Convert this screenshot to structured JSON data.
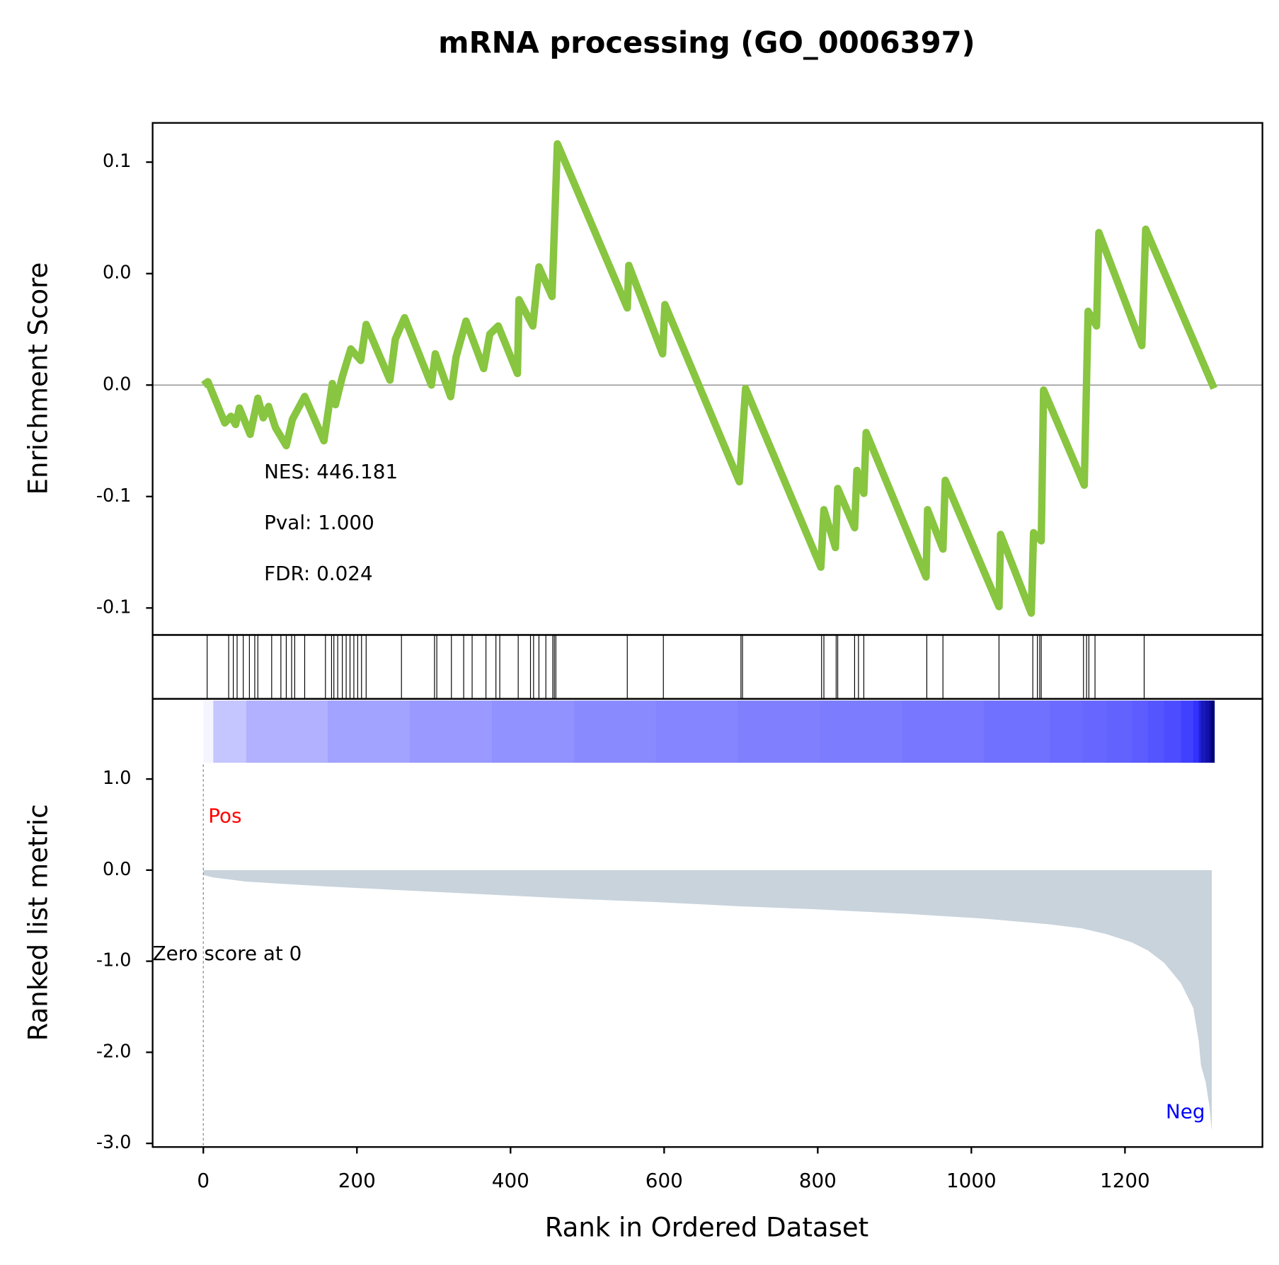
{
  "chart_data": {
    "type": "gsea",
    "title": "mRNA processing (GO_0006397)",
    "xlabel": "Rank in Ordered Dataset",
    "xlim": [
      -66,
      1379
    ],
    "xticks": [
      0,
      200,
      400,
      600,
      800,
      1000,
      1200
    ],
    "enrichment": {
      "ylabel": "Enrichment Score",
      "color": "#88c540",
      "ylim": [
        -0.1121,
        0.1176
      ],
      "yticks": [
        {
          "value": 0.1,
          "label": "0.1"
        },
        {
          "value": 0.05,
          "label": "0.0"
        },
        {
          "value": 0,
          "label": "0.0"
        },
        {
          "value": -0.05,
          "label": "-0.1"
        },
        {
          "value": -0.1,
          "label": "-0.1"
        }
      ],
      "x": [
        0,
        6,
        28,
        36,
        42,
        47,
        61,
        71,
        78,
        85,
        94,
        108,
        116,
        132,
        157,
        168,
        172,
        181,
        192,
        205,
        212,
        243,
        250,
        262,
        297,
        302,
        322,
        329,
        342,
        365,
        373,
        384,
        409,
        411,
        429,
        437,
        454,
        461,
        552,
        554,
        598,
        601,
        698,
        706,
        804,
        808,
        823,
        826,
        848,
        851,
        860,
        863,
        941,
        943,
        963,
        966,
        1036,
        1038,
        1078,
        1081,
        1091,
        1094,
        1147,
        1152,
        1163,
        1166,
        1222,
        1227,
        1316
      ],
      "values": [
        0,
        0.0015,
        -0.017,
        -0.014,
        -0.0177,
        -0.0103,
        -0.0221,
        -0.0059,
        -0.0147,
        -0.0096,
        -0.0191,
        -0.0272,
        -0.0154,
        -0.0051,
        -0.025,
        0.0007,
        -0.0088,
        0.0037,
        0.0162,
        0.011,
        0.0272,
        0.0022,
        0.0206,
        0.0302,
        0,
        0.014,
        -0.0052,
        0.0125,
        0.0287,
        0.0074,
        0.0228,
        0.0265,
        0.0052,
        0.0383,
        0.0265,
        0.053,
        0.0397,
        0.1082,
        0.0346,
        0.0537,
        0.014,
        0.0361,
        -0.0434,
        -0.0015,
        -0.0817,
        -0.0559,
        -0.0729,
        -0.0464,
        -0.064,
        -0.0383,
        -0.0486,
        -0.0213,
        -0.0861,
        -0.0559,
        -0.0736,
        -0.0427,
        -0.0994,
        -0.067,
        -0.1023,
        -0.0662,
        -0.0699,
        -0.0022,
        -0.0449,
        0.0331,
        0.0265,
        0.0684,
        0.0177,
        0.0699,
        -0.0015
      ],
      "annotations": [
        "NES: 446.181",
        "Pval: 1.000",
        "FDR: 0.024"
      ]
    },
    "hits": [
      5,
      33,
      39,
      44,
      52,
      60,
      67,
      71,
      89,
      101,
      108,
      115,
      119,
      132,
      159,
      167,
      170,
      175,
      181,
      186,
      191,
      196,
      201,
      206,
      212,
      258,
      301,
      304,
      323,
      339,
      350,
      368,
      381,
      386,
      410,
      426,
      430,
      437,
      446,
      455,
      457,
      459,
      552,
      599,
      700,
      702,
      805,
      808,
      824,
      826,
      848,
      853,
      860,
      942,
      963,
      1036,
      1080,
      1086,
      1089,
      1091,
      1146,
      1150,
      1153,
      1161,
      1225
    ],
    "metric": {
      "ylabel": "Ranked list metric",
      "color": "#c8d3dc",
      "ylim": [
        -3.04,
        1.88
      ],
      "yticks": [
        {
          "value": 1,
          "label": "1.0"
        },
        {
          "value": 0,
          "label": "0.0"
        },
        {
          "value": -1,
          "label": "-1.0"
        },
        {
          "value": -2,
          "label": "-2.0"
        },
        {
          "value": -3,
          "label": "-3.0"
        }
      ],
      "x": [
        0,
        13,
        56,
        162,
        269,
        376,
        483,
        589,
        696,
        803,
        910,
        1016,
        1102,
        1144,
        1176,
        1209,
        1230,
        1251,
        1273,
        1289,
        1296,
        1299,
        1305,
        1310,
        1313
      ],
      "values": [
        -0.054,
        -0.081,
        -0.126,
        -0.18,
        -0.225,
        -0.27,
        -0.315,
        -0.351,
        -0.396,
        -0.432,
        -0.477,
        -0.532,
        -0.595,
        -0.64,
        -0.703,
        -0.793,
        -0.883,
        -1.018,
        -1.243,
        -1.514,
        -1.874,
        -2.144,
        -2.324,
        -2.595,
        -2.865
      ],
      "pos_label": "Pos",
      "neg_label": "Neg",
      "zero_label": "Zero score at 0"
    }
  }
}
